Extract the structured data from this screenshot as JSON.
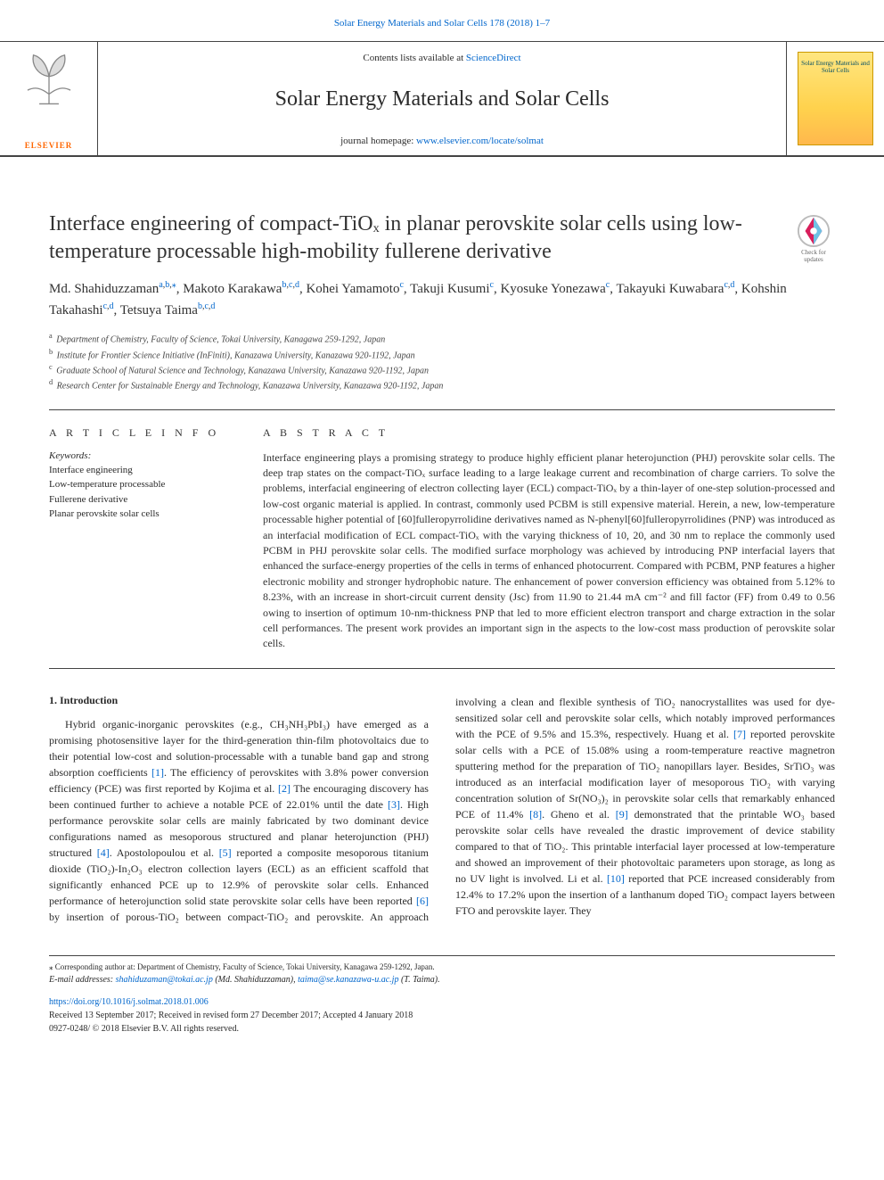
{
  "citation_line_prefix": "Solar Energy Materials and Solar Cells 178 (2018) 1–7",
  "banner": {
    "contents_prefix": "Contents lists available at ",
    "contents_link": "ScienceDirect",
    "journal_name": "Solar Energy Materials and Solar Cells",
    "homepage_prefix": "journal homepage: ",
    "homepage_link": "www.elsevier.com/locate/solmat",
    "publisher_wordmark": "ELSEVIER",
    "cover_label": "Solar Energy Materials and Solar Cells"
  },
  "updates_badge_caption": "Check for updates",
  "title": "Interface engineering of compact-TiOₓ in planar perovskite solar cells using low-temperature processable high-mobility fullerene derivative",
  "authors_html_parts": [
    {
      "name": "Md. Shahiduzzaman",
      "aff": "a,b,",
      "star": "⁎"
    },
    {
      "name": "Makoto Karakawa",
      "aff": "b,c,d"
    },
    {
      "name": "Kohei Yamamoto",
      "aff": "c"
    },
    {
      "name": "Takuji Kusumi",
      "aff": "c"
    },
    {
      "name": "Kyosuke Yonezawa",
      "aff": "c"
    },
    {
      "name": "Takayuki Kuwabara",
      "aff": "c,d"
    },
    {
      "name": "Kohshin Takahashi",
      "aff": "c,d"
    },
    {
      "name": "Tetsuya Taima",
      "aff": "b,c,d"
    }
  ],
  "affiliations": [
    {
      "key": "a",
      "text": "Department of Chemistry, Faculty of Science, Tokai University, Kanagawa 259-1292, Japan"
    },
    {
      "key": "b",
      "text": "Institute for Frontier Science Initiative (InFiniti), Kanazawa University, Kanazawa 920-1192, Japan"
    },
    {
      "key": "c",
      "text": "Graduate School of Natural Science and Technology, Kanazawa University, Kanazawa 920-1192, Japan"
    },
    {
      "key": "d",
      "text": "Research Center for Sustainable Energy and Technology, Kanazawa University, Kanazawa 920-1192, Japan"
    }
  ],
  "article_info_heading": "A R T I C L E  I N F O",
  "abstract_heading": "A B S T R A C T",
  "keywords_label": "Keywords:",
  "keywords": [
    "Interface engineering",
    "Low-temperature processable",
    "Fullerene derivative",
    "Planar perovskite solar cells"
  ],
  "abstract": "Interface engineering plays a promising strategy to produce highly efficient planar heterojunction (PHJ) perovskite solar cells. The deep trap states on the compact-TiOₓ surface leading to a large leakage current and recombination of charge carriers. To solve the problems, interfacial engineering of electron collecting layer (ECL) compact-TiOₓ by a thin-layer of one-step solution-processed and low-cost organic material is applied. In contrast, commonly used PCBM is still expensive material. Herein, a new, low-temperature processable higher potential of [60]fulleropyrrolidine derivatives named as N-phenyl[60]fulleropyrrolidines (PNP) was introduced as an interfacial modification of ECL compact-TiOₓ with the varying thickness of 10, 20, and 30 nm to replace the commonly used PCBM in PHJ perovskite solar cells. The modified surface morphology was achieved by introducing PNP interfacial layers that enhanced the surface-energy properties of the cells in terms of enhanced photocurrent. Compared with PCBM, PNP features a higher electronic mobility and stronger hydrophobic nature. The enhancement of power conversion efficiency was obtained from 5.12% to 8.23%, with an increase in short-circuit current density (Jsc) from 11.90 to 21.44 mA cm⁻² and fill factor (FF) from 0.49 to 0.56 owing to insertion of optimum 10-nm-thickness PNP that led to more efficient electron transport and charge extraction in the solar cell performances. The present work provides an important sign in the aspects to the low-cost mass production of perovskite solar cells.",
  "intro_heading": "1. Introduction",
  "intro_body": "Hybrid organic-inorganic perovskites (e.g., CH₃NH₃PbI₃) have emerged as a promising photosensitive layer for the third-generation thin-film photovoltaics due to their potential low-cost and solution-processable with a tunable band gap and strong absorption coefficients [1]. The efficiency of perovskites with 3.8% power conversion efficiency (PCE) was first reported by Kojima et al. [2] The encouraging discovery has been continued further to achieve a notable PCE of 22.01% until the date [3]. High performance perovskite solar cells are mainly fabricated by two dominant device configurations named as mesoporous structured and planar heterojunction (PHJ) structured [4]. Apostolopoulou et al. [5] reported a composite mesoporous titanium dioxide (TiO₂)-In₂O₃ electron collection layers (ECL) as an efficient scaffold that significantly enhanced PCE up to 12.9% of perovskite solar cells. Enhanced performance of heterojunction solid state perovskite solar cells have been reported [6] by insertion of porous-TiO₂ between compact-TiO₂ and perovskite. An approach involving a clean and flexible synthesis of TiO₂ nanocrystallites was used for dye-sensitized solar cell and perovskite solar cells, which notably improved performances with the PCE of 9.5% and 15.3%, respectively. Huang et al. [7] reported perovskite solar cells with a PCE of 15.08% using a room-temperature reactive magnetron sputtering method for the preparation of TiO₂ nanopillars layer. Besides, SrTiO₃ was introduced as an interfacial modification layer of mesoporous TiO₂ with varying concentration solution of Sr(NO₃)₂ in perovskite solar cells that remarkably enhanced PCE of 11.4% [8]. Gheno et al. [9] demonstrated that the printable WO₃ based perovskite solar cells have revealed the drastic improvement of device stability compared to that of TiO₂. This printable interfacial layer processed at low-temperature and showed an improvement of their photovoltaic parameters upon storage, as long as no UV light is involved. Li et al. [10] reported that PCE increased considerably from 12.4% to 17.2% upon the insertion of a lanthanum doped TiO₂ compact layers between FTO and perovskite layer. They",
  "footer": {
    "corresponding": "⁎ Corresponding author at: Department of Chemistry, Faculty of Science, Tokai University, Kanagawa 259-1292, Japan.",
    "email_label": "E-mail addresses: ",
    "email1": "shahiduzaman@tokai.ac.jp",
    "email1_paren": " (Md. Shahiduzzaman), ",
    "email2": "taima@se.kanazawa-u.ac.jp",
    "email2_paren": " (T. Taima).",
    "doi": "https://doi.org/10.1016/j.solmat.2018.01.006",
    "received": "Received 13 September 2017; Received in revised form 27 December 2017; Accepted 4 January 2018",
    "copyright": "0927-0248/ © 2018 Elsevier B.V. All rights reserved."
  },
  "colors": {
    "link": "#0066cc",
    "orange": "#ff6600",
    "border": "#444444",
    "text": "#2a2a2a"
  }
}
